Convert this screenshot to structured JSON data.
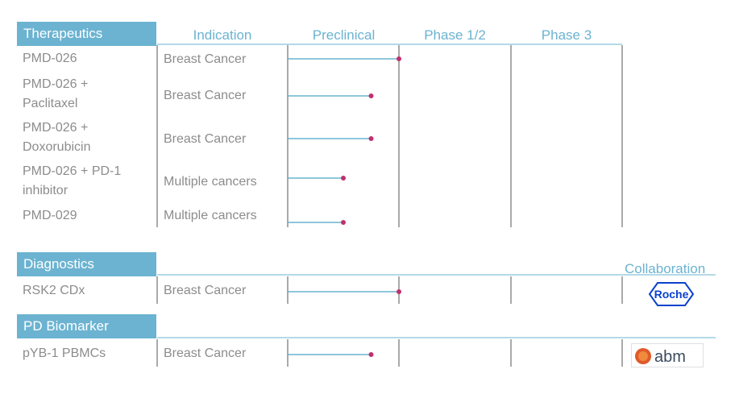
{
  "sections": [
    {
      "key": "therapeutics",
      "label": "Therapeutics"
    },
    {
      "key": "diagnostics",
      "label": "Diagnostics"
    },
    {
      "key": "pd_biomarker",
      "label": "PD Biomarker"
    }
  ],
  "column_headers": [
    "Indication",
    "Preclinical",
    "Phase 1/2",
    "Phase 3"
  ],
  "collaboration_header": "Collaboration",
  "collaborators": [
    {
      "section": "diagnostics",
      "name": "Roche",
      "icon": "roche-logo-icon",
      "color": "#0b41cd"
    },
    {
      "section": "pd_biomarker",
      "name": "abm",
      "icon": "abm-logo-icon",
      "color": "#3a4b5c"
    }
  ],
  "colors": {
    "header_bg": "#6bb3d1",
    "header_text": "#ffffff",
    "bar": "#6bb3d1",
    "marker": "#c0306d",
    "row_text": "#8c8c8c",
    "grid": "#555555"
  },
  "chart_data": {
    "type": "bar",
    "stages": [
      "Preclinical",
      "Phase 1/2",
      "Phase 3"
    ],
    "progress_unit": "fraction of Preclinical stage completed",
    "rows": [
      {
        "section": "therapeutics",
        "program": "PMD-026",
        "indication": "Breast Cancer",
        "progress": 1.0
      },
      {
        "section": "therapeutics",
        "program": "PMD-026 +\nPaclitaxel",
        "indication": "Breast Cancer",
        "progress": 0.75
      },
      {
        "section": "therapeutics",
        "program": "PMD-026 +\nDoxorubicin",
        "indication": "Breast Cancer",
        "progress": 0.75
      },
      {
        "section": "therapeutics",
        "program": "PMD-026 + PD-1\ninhibitor",
        "indication": "Multiple cancers",
        "progress": 0.5
      },
      {
        "section": "therapeutics",
        "program": "PMD-029",
        "indication": "Multiple cancers",
        "progress": 0.5
      },
      {
        "section": "diagnostics",
        "program": "RSK2 CDx",
        "indication": "Breast Cancer",
        "progress": 1.0
      },
      {
        "section": "pd_biomarker",
        "program": "pYB-1 PBMCs",
        "indication": "Breast Cancer",
        "progress": 0.75
      }
    ]
  }
}
